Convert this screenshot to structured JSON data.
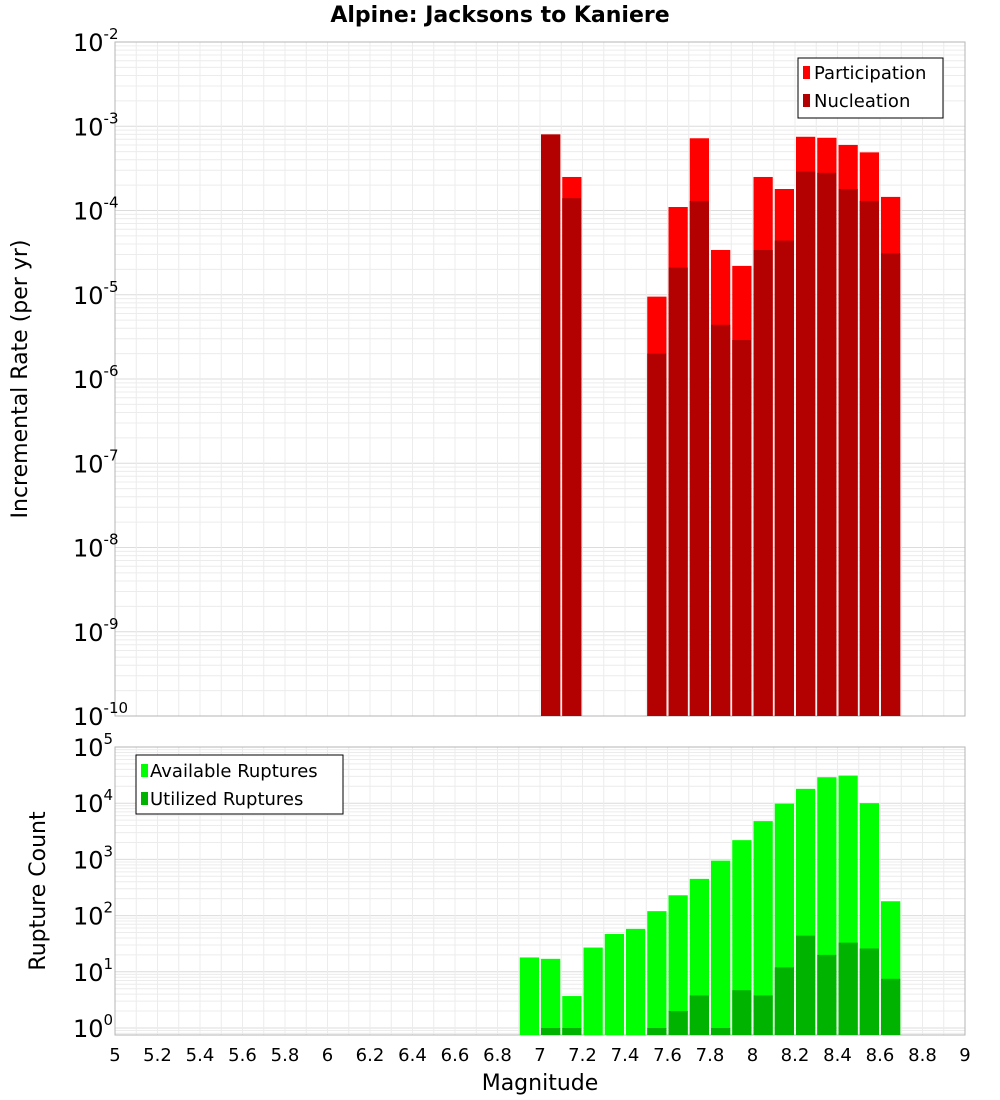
{
  "chart_data": [
    {
      "type": "bar",
      "title": "Alpine: Jacksons to Kaniere",
      "xlabel": "",
      "ylabel": "Incremental Rate (per yr)",
      "yscale": "log",
      "ylim": [
        1e-10,
        0.01
      ],
      "xlim": [
        5,
        9
      ],
      "grid": true,
      "legend_position": "top-right",
      "y_ticks": [
        {
          "base": "10",
          "exp": "-10",
          "value": 1e-10
        },
        {
          "base": "10",
          "exp": "-9",
          "value": 1e-09
        },
        {
          "base": "10",
          "exp": "-8",
          "value": 1e-08
        },
        {
          "base": "10",
          "exp": "-7",
          "value": 1e-07
        },
        {
          "base": "10",
          "exp": "-6",
          "value": 1e-06
        },
        {
          "base": "10",
          "exp": "-5",
          "value": 1e-05
        },
        {
          "base": "10",
          "exp": "-4",
          "value": 0.0001
        },
        {
          "base": "10",
          "exp": "-3",
          "value": 0.001
        },
        {
          "base": "10",
          "exp": "-2",
          "value": 0.01
        }
      ],
      "x": [
        7.05,
        7.15,
        7.55,
        7.65,
        7.75,
        7.85,
        7.95,
        8.05,
        8.15,
        8.25,
        8.35,
        8.45,
        8.55,
        8.65
      ],
      "series": [
        {
          "name": "Participation",
          "color": "#ff0000",
          "values": [
            0.0008,
            0.00025,
            9.5e-06,
            0.00011,
            0.00072,
            3.4e-05,
            2.2e-05,
            0.00025,
            0.00018,
            0.00075,
            0.00073,
            0.0006,
            0.00049,
            0.000145
          ]
        },
        {
          "name": "Nucleation",
          "color": "#b30000",
          "values": [
            0.0008,
            0.00014,
            2e-06,
            2.1e-05,
            0.00013,
            4.4e-06,
            2.9e-06,
            3.4e-05,
            4.4e-05,
            0.00029,
            0.00028,
            0.00018,
            0.00013,
            3.1e-05
          ]
        }
      ]
    },
    {
      "type": "bar",
      "title": "",
      "xlabel": "Magnitude",
      "ylabel": "Rupture Count",
      "yscale": "log",
      "ylim": [
        0.75,
        100000.0
      ],
      "xlim": [
        5,
        9
      ],
      "grid": true,
      "legend_position": "top-left",
      "y_ticks": [
        {
          "base": "10",
          "exp": "0",
          "value": 1
        },
        {
          "base": "10",
          "exp": "1",
          "value": 10
        },
        {
          "base": "10",
          "exp": "2",
          "value": 100
        },
        {
          "base": "10",
          "exp": "3",
          "value": 1000
        },
        {
          "base": "10",
          "exp": "4",
          "value": 10000
        },
        {
          "base": "10",
          "exp": "5",
          "value": 100000
        }
      ],
      "x_ticks": [
        "5",
        "5.2",
        "5.4",
        "5.6",
        "5.8",
        "6",
        "6.2",
        "6.4",
        "6.6",
        "6.8",
        "7",
        "7.2",
        "7.4",
        "7.6",
        "7.8",
        "8",
        "8.2",
        "8.4",
        "8.6",
        "8.8",
        "9"
      ],
      "x": [
        6.95,
        7.05,
        7.15,
        7.25,
        7.35,
        7.45,
        7.55,
        7.65,
        7.75,
        7.85,
        7.95,
        8.05,
        8.15,
        8.25,
        8.35,
        8.45,
        8.55,
        8.65
      ],
      "series": [
        {
          "name": "Available Ruptures",
          "color": "#00ff00",
          "values": [
            18,
            17,
            3.7,
            27,
            47,
            58,
            120,
            230,
            450,
            950,
            2200,
            4800,
            9800,
            18000,
            29000,
            31000,
            10000,
            180
          ]
        },
        {
          "name": "Utilized Ruptures",
          "color": "#00b300",
          "values": [
            null,
            1,
            1,
            null,
            null,
            null,
            1,
            2,
            3.8,
            1,
            4.7,
            3.8,
            12,
            44,
            20,
            33,
            26,
            7.5
          ]
        }
      ]
    }
  ]
}
